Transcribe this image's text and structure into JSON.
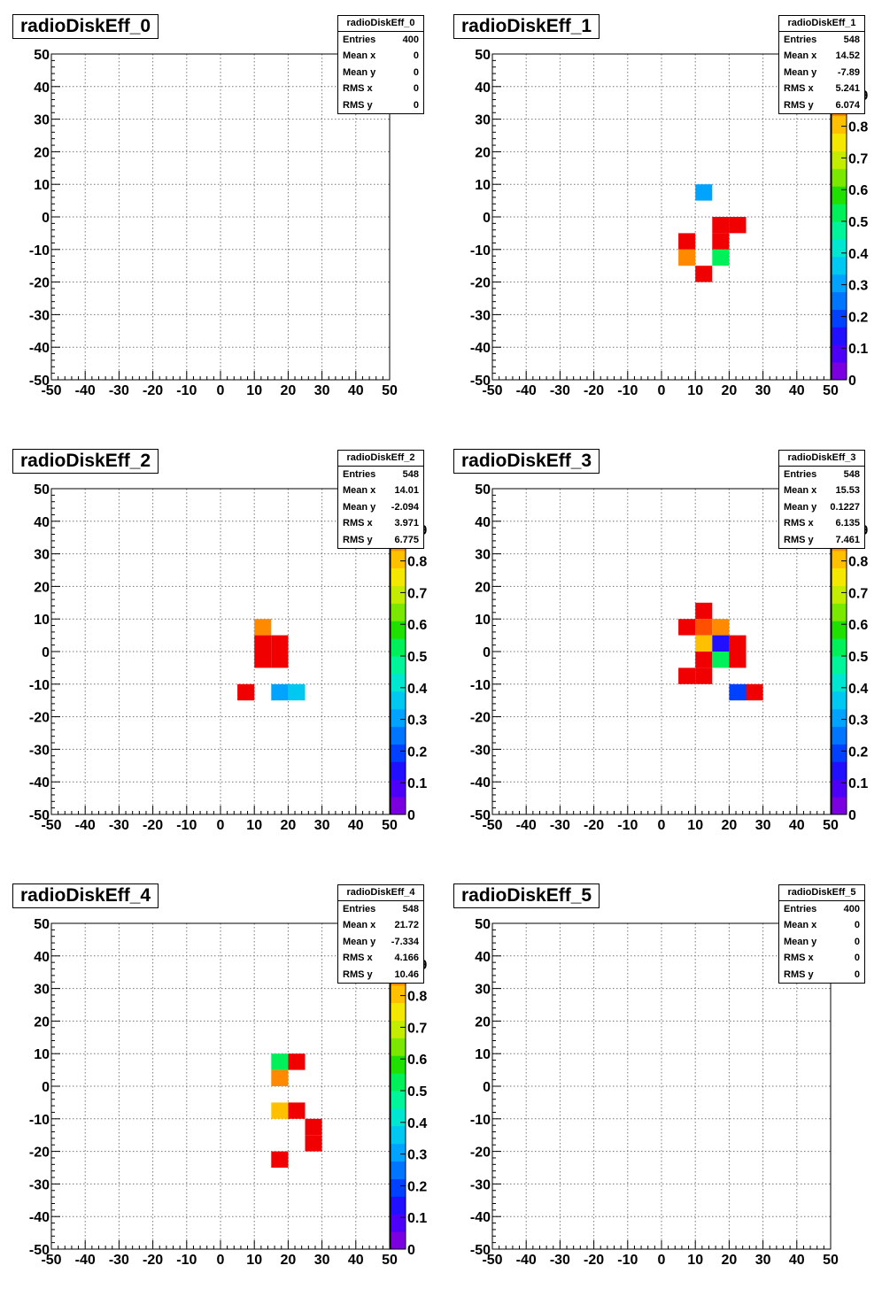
{
  "colors": {
    "palette": [
      "#7a00e0",
      "#4d00f8",
      "#2010ff",
      "#0040ff",
      "#0076ff",
      "#00a4ff",
      "#00c8f0",
      "#00e6d0",
      "#00f59a",
      "#00f05a",
      "#20e000",
      "#7ae800",
      "#c4ec00",
      "#f4e800",
      "#ffc000",
      "#ff8a00",
      "#ff5000",
      "#f00000"
    ]
  },
  "footnote": "",
  "panels": [
    {
      "title": "radioDiskEff_0",
      "show_palette": false,
      "stats": {
        "title": "radioDiskEff_0",
        "rows": [
          [
            "Entries",
            "400"
          ],
          [
            "Mean x",
            "0"
          ],
          [
            "Mean y",
            "0"
          ],
          [
            "RMS x",
            "0"
          ],
          [
            "RMS y",
            "0"
          ]
        ]
      },
      "chart_data": {
        "type": "heatmap",
        "xlim": [
          -50,
          50
        ],
        "ylim": [
          -50,
          50
        ],
        "zlim": [
          0,
          1
        ],
        "bin_size": 5,
        "x_ticks": [
          "-50",
          "-40",
          "-30",
          "-20",
          "-10",
          "0",
          "10",
          "20",
          "30",
          "40",
          "50"
        ],
        "y_ticks": [
          "-50",
          "-40",
          "-30",
          "-20",
          "-10",
          "0",
          "10",
          "20",
          "30",
          "40",
          "50"
        ],
        "z_ticks": [
          "0",
          "0.1",
          "0.2",
          "0.3",
          "0.4",
          "0.5",
          "0.6",
          "0.7",
          "0.8",
          "0.9"
        ],
        "grid": true,
        "cells": []
      }
    },
    {
      "title": "radioDiskEff_1",
      "show_palette": true,
      "stats": {
        "title": "radioDiskEff_1",
        "rows": [
          [
            "Entries",
            "548"
          ],
          [
            "Mean x",
            "14.52"
          ],
          [
            "Mean y",
            "-7.89"
          ],
          [
            "RMS x",
            "5.241"
          ],
          [
            "RMS y",
            "6.074"
          ]
        ]
      },
      "chart_data": {
        "type": "heatmap",
        "xlim": [
          -50,
          50
        ],
        "ylim": [
          -50,
          50
        ],
        "zlim": [
          0,
          1
        ],
        "bin_size": 5,
        "x_ticks": [
          "-50",
          "-40",
          "-30",
          "-20",
          "-10",
          "0",
          "10",
          "20",
          "30",
          "40",
          "50"
        ],
        "y_ticks": [
          "-50",
          "-40",
          "-30",
          "-20",
          "-10",
          "0",
          "10",
          "20",
          "30",
          "40",
          "50"
        ],
        "z_ticks": [
          "0",
          "0.1",
          "0.2",
          "0.3",
          "0.4",
          "0.5",
          "0.6",
          "0.7",
          "0.8",
          "0.9"
        ],
        "grid": true,
        "cells": [
          {
            "x": 12.5,
            "y": 7.5,
            "z": 0.3
          },
          {
            "x": 17.5,
            "y": -2.5,
            "z": 1.0
          },
          {
            "x": 22.5,
            "y": -2.5,
            "z": 1.0
          },
          {
            "x": 7.5,
            "y": -7.5,
            "z": 1.0
          },
          {
            "x": 17.5,
            "y": -7.5,
            "z": 1.0
          },
          {
            "x": 7.5,
            "y": -12.5,
            "z": 0.85
          },
          {
            "x": 17.5,
            "y": -12.5,
            "z": 0.55
          },
          {
            "x": 12.5,
            "y": -17.5,
            "z": 1.0
          }
        ]
      }
    },
    {
      "title": "radioDiskEff_2",
      "show_palette": true,
      "stats": {
        "title": "radioDiskEff_2",
        "rows": [
          [
            "Entries",
            "548"
          ],
          [
            "Mean x",
            "14.01"
          ],
          [
            "Mean y",
            "-2.094"
          ],
          [
            "RMS x",
            "3.971"
          ],
          [
            "RMS y",
            "6.775"
          ]
        ]
      },
      "chart_data": {
        "type": "heatmap",
        "xlim": [
          -50,
          50
        ],
        "ylim": [
          -50,
          50
        ],
        "zlim": [
          0,
          1
        ],
        "bin_size": 5,
        "x_ticks": [
          "-50",
          "-40",
          "-30",
          "-20",
          "-10",
          "0",
          "10",
          "20",
          "30",
          "40",
          "50"
        ],
        "y_ticks": [
          "-50",
          "-40",
          "-30",
          "-20",
          "-10",
          "0",
          "10",
          "20",
          "30",
          "40",
          "50"
        ],
        "z_ticks": [
          "0",
          "0.1",
          "0.2",
          "0.3",
          "0.4",
          "0.5",
          "0.6",
          "0.7",
          "0.8",
          "0.9"
        ],
        "grid": true,
        "cells": [
          {
            "x": 12.5,
            "y": 7.5,
            "z": 0.85
          },
          {
            "x": 12.5,
            "y": 2.5,
            "z": 1.0
          },
          {
            "x": 17.5,
            "y": 2.5,
            "z": 1.0
          },
          {
            "x": 12.5,
            "y": -2.5,
            "z": 0.95
          },
          {
            "x": 17.5,
            "y": -2.5,
            "z": 1.0
          },
          {
            "x": 7.5,
            "y": -12.5,
            "z": 1.0
          },
          {
            "x": 17.5,
            "y": -12.5,
            "z": 0.3
          },
          {
            "x": 22.5,
            "y": -12.5,
            "z": 0.35
          }
        ]
      }
    },
    {
      "title": "radioDiskEff_3",
      "show_palette": true,
      "stats": {
        "title": "radioDiskEff_3",
        "rows": [
          [
            "Entries",
            "548"
          ],
          [
            "Mean x",
            "15.53"
          ],
          [
            "Mean y",
            "0.1227"
          ],
          [
            "RMS x",
            "6.135"
          ],
          [
            "RMS y",
            "7.461"
          ]
        ]
      },
      "chart_data": {
        "type": "heatmap",
        "xlim": [
          -50,
          50
        ],
        "ylim": [
          -50,
          50
        ],
        "zlim": [
          0,
          1
        ],
        "bin_size": 5,
        "x_ticks": [
          "-50",
          "-40",
          "-30",
          "-20",
          "-10",
          "0",
          "10",
          "20",
          "30",
          "40",
          "50"
        ],
        "y_ticks": [
          "-50",
          "-40",
          "-30",
          "-20",
          "-10",
          "0",
          "10",
          "20",
          "30",
          "40",
          "50"
        ],
        "z_ticks": [
          "0",
          "0.1",
          "0.2",
          "0.3",
          "0.4",
          "0.5",
          "0.6",
          "0.7",
          "0.8",
          "0.9"
        ],
        "grid": true,
        "cells": [
          {
            "x": 12.5,
            "y": 12.5,
            "z": 1.0
          },
          {
            "x": 7.5,
            "y": 7.5,
            "z": 1.0
          },
          {
            "x": 12.5,
            "y": 7.5,
            "z": 0.9
          },
          {
            "x": 17.5,
            "y": 7.5,
            "z": 0.85
          },
          {
            "x": 12.5,
            "y": 2.5,
            "z": 0.8
          },
          {
            "x": 17.5,
            "y": 2.5,
            "z": 0.15
          },
          {
            "x": 22.5,
            "y": 2.5,
            "z": 1.0
          },
          {
            "x": 12.5,
            "y": -2.5,
            "z": 1.0
          },
          {
            "x": 17.5,
            "y": -2.5,
            "z": 0.55
          },
          {
            "x": 22.5,
            "y": -2.5,
            "z": 1.0
          },
          {
            "x": 7.5,
            "y": -7.5,
            "z": 1.0
          },
          {
            "x": 12.5,
            "y": -7.5,
            "z": 1.0
          },
          {
            "x": 22.5,
            "y": -12.5,
            "z": 0.2
          },
          {
            "x": 27.5,
            "y": -12.5,
            "z": 1.0
          }
        ]
      }
    },
    {
      "title": "radioDiskEff_4",
      "show_palette": true,
      "stats": {
        "title": "radioDiskEff_4",
        "rows": [
          [
            "Entries",
            "548"
          ],
          [
            "Mean x",
            "21.72"
          ],
          [
            "Mean y",
            "-7.334"
          ],
          [
            "RMS x",
            "4.166"
          ],
          [
            "RMS y",
            "10.46"
          ]
        ]
      },
      "chart_data": {
        "type": "heatmap",
        "xlim": [
          -50,
          50
        ],
        "ylim": [
          -50,
          50
        ],
        "zlim": [
          0,
          1
        ],
        "bin_size": 5,
        "x_ticks": [
          "-50",
          "-40",
          "-30",
          "-20",
          "-10",
          "0",
          "10",
          "20",
          "30",
          "40",
          "50"
        ],
        "y_ticks": [
          "-50",
          "-40",
          "-30",
          "-20",
          "-10",
          "0",
          "10",
          "20",
          "30",
          "40",
          "50"
        ],
        "z_ticks": [
          "0",
          "0.1",
          "0.2",
          "0.3",
          "0.4",
          "0.5",
          "0.6",
          "0.7",
          "0.8",
          "0.9"
        ],
        "grid": true,
        "cells": [
          {
            "x": 17.5,
            "y": 7.5,
            "z": 0.55
          },
          {
            "x": 22.5,
            "y": 7.5,
            "z": 1.0
          },
          {
            "x": 17.5,
            "y": 2.5,
            "z": 0.85
          },
          {
            "x": 17.5,
            "y": -7.5,
            "z": 0.78
          },
          {
            "x": 22.5,
            "y": -7.5,
            "z": 1.0
          },
          {
            "x": 27.5,
            "y": -12.5,
            "z": 1.0
          },
          {
            "x": 27.5,
            "y": -17.5,
            "z": 1.0
          },
          {
            "x": 17.5,
            "y": -22.5,
            "z": 1.0
          }
        ]
      }
    },
    {
      "title": "radioDiskEff_5",
      "show_palette": false,
      "stats": {
        "title": "radioDiskEff_5",
        "rows": [
          [
            "Entries",
            "400"
          ],
          [
            "Mean x",
            "0"
          ],
          [
            "Mean y",
            "0"
          ],
          [
            "RMS x",
            "0"
          ],
          [
            "RMS y",
            "0"
          ]
        ]
      },
      "chart_data": {
        "type": "heatmap",
        "xlim": [
          -50,
          50
        ],
        "ylim": [
          -50,
          50
        ],
        "zlim": [
          0,
          1
        ],
        "bin_size": 5,
        "x_ticks": [
          "-50",
          "-40",
          "-30",
          "-20",
          "-10",
          "0",
          "10",
          "20",
          "30",
          "40",
          "50"
        ],
        "y_ticks": [
          "-50",
          "-40",
          "-30",
          "-20",
          "-10",
          "0",
          "10",
          "20",
          "30",
          "40",
          "50"
        ],
        "z_ticks": [
          "0",
          "0.1",
          "0.2",
          "0.3",
          "0.4",
          "0.5",
          "0.6",
          "0.7",
          "0.8",
          "0.9"
        ],
        "grid": true,
        "cells": []
      }
    }
  ]
}
